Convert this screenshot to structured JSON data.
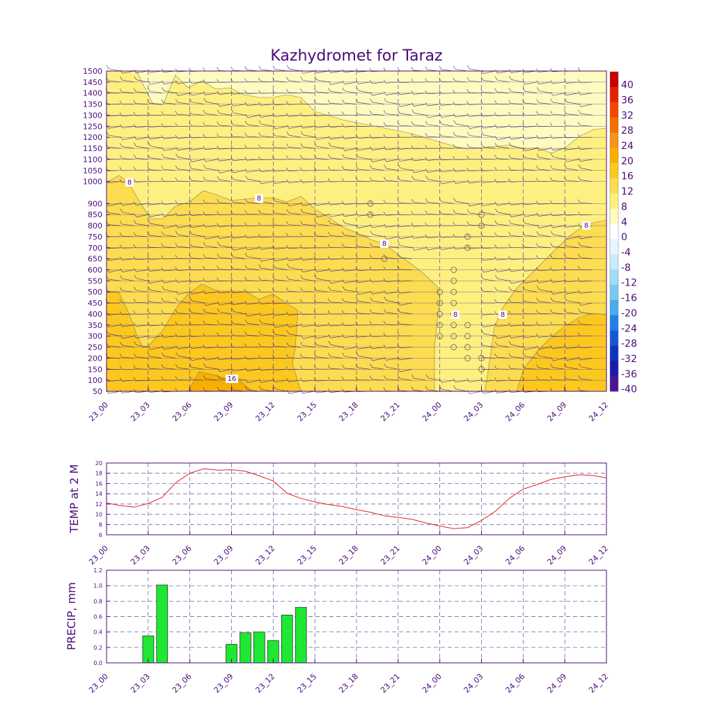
{
  "chart_data": [
    {
      "type": "contour",
      "title": "Kazhydromet for Taraz",
      "x_ticks": [
        "23_00",
        "23_03",
        "23_06",
        "23_09",
        "23_12",
        "23_15",
        "23_18",
        "23_21",
        "24_00",
        "24_03",
        "24_06",
        "24_09",
        "24_12"
      ],
      "y_ticks": [
        50,
        100,
        150,
        200,
        250,
        300,
        350,
        400,
        450,
        500,
        550,
        600,
        650,
        700,
        750,
        800,
        850,
        900,
        1000,
        1050,
        1100,
        1150,
        1200,
        1250,
        1300,
        1350,
        1400,
        1450,
        1500
      ],
      "ylim": [
        50,
        1500
      ],
      "contour_labels": [
        "8",
        "8",
        "8",
        "8",
        "8",
        "8",
        "16"
      ],
      "colorbar": {
        "labels": [
          "40",
          "36",
          "32",
          "28",
          "24",
          "20",
          "16",
          "12",
          "8",
          "4",
          "0",
          "-4",
          "-8",
          "-12",
          "-16",
          "-20",
          "-24",
          "-28",
          "-32",
          "-36",
          "-40"
        ],
        "colors": [
          "#c80000",
          "#e82000",
          "#f04800",
          "#f07000",
          "#f49418",
          "#f8b000",
          "#fcc820",
          "#fcdc50",
          "#fef080",
          "#fffbbe",
          "#ffffff",
          "#e6f7ff",
          "#c8ecfc",
          "#a0dcf8",
          "#78c8f4",
          "#48acf0",
          "#2080e8",
          "#1458d8",
          "#0c34c0",
          "#1a1aa8",
          "#4a1496"
        ]
      }
    },
    {
      "type": "line",
      "ylabel": "TEMP at 2 M",
      "ylim": [
        6,
        20
      ],
      "y_ticks": [
        6,
        8,
        10,
        12,
        14,
        16,
        18,
        20
      ],
      "x_ticks": [
        "23_00",
        "23_03",
        "23_06",
        "23_09",
        "23_12",
        "23_15",
        "23_18",
        "23_21",
        "24_00",
        "24_03",
        "24_06",
        "24_09",
        "24_12"
      ],
      "x": [
        0,
        1,
        2,
        3,
        4,
        5,
        6,
        7,
        8,
        9,
        10,
        11,
        12,
        13,
        14,
        15,
        16,
        17,
        18,
        19,
        20,
        21,
        22,
        23,
        24,
        25,
        26,
        27,
        28,
        29,
        30,
        31,
        32,
        33,
        34,
        35,
        36
      ],
      "values": [
        12.2,
        11.7,
        11.4,
        12.1,
        13.3,
        16.2,
        18.0,
        18.9,
        18.6,
        18.7,
        18.4,
        17.5,
        16.5,
        14.1,
        13.1,
        12.4,
        11.9,
        11.5,
        10.9,
        10.4,
        9.7,
        9.4,
        9.0,
        8.3,
        7.7,
        7.2,
        7.4,
        8.8,
        10.6,
        13.1,
        14.9,
        15.8,
        16.8,
        17.3,
        17.7,
        17.6,
        17.1
      ],
      "line_color": "#e82020"
    },
    {
      "type": "bar",
      "ylabel": "PRECIP, mm",
      "ylim": [
        0,
        1.2
      ],
      "y_ticks": [
        "0.0",
        "0.2",
        "0.4",
        "0.6",
        "0.8",
        "1.0",
        "1.2"
      ],
      "x_ticks": [
        "23_00",
        "23_03",
        "23_06",
        "23_09",
        "23_12",
        "23_15",
        "23_18",
        "23_21",
        "24_00",
        "24_03",
        "24_06",
        "24_09",
        "24_12"
      ],
      "bars": [
        {
          "x": 3,
          "value": 0.35
        },
        {
          "x": 4,
          "value": 1.01
        },
        {
          "x": 9,
          "value": 0.24
        },
        {
          "x": 10,
          "value": 0.39
        },
        {
          "x": 11,
          "value": 0.4
        },
        {
          "x": 12,
          "value": 0.29
        },
        {
          "x": 13,
          "value": 0.62
        },
        {
          "x": 14,
          "value": 0.72
        }
      ],
      "bar_color": "#1ee832"
    }
  ]
}
